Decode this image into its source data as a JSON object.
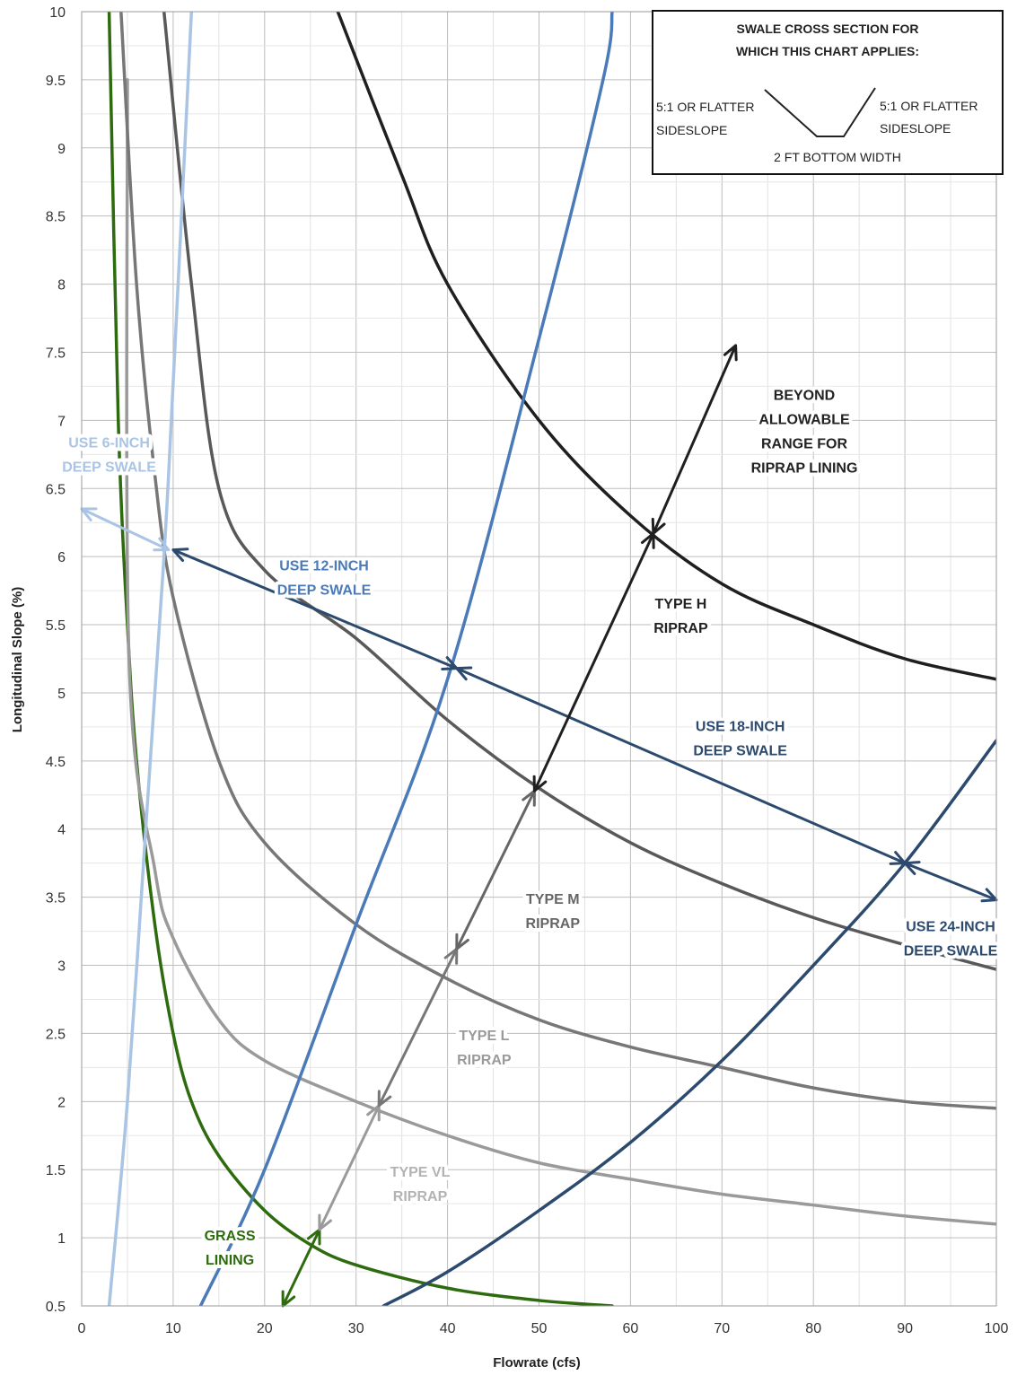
{
  "chart_data": {
    "type": "line",
    "xlabel": "Flowrate (cfs)",
    "ylabel": "Longitudinal Slope (%)",
    "xlim": [
      0,
      100
    ],
    "ylim": [
      0.5,
      10
    ],
    "x_ticks": [
      "0",
      "10",
      "20",
      "30",
      "40",
      "50",
      "60",
      "70",
      "80",
      "90",
      "100"
    ],
    "y_ticks": [
      "0.5",
      "1",
      "1.5",
      "2",
      "2.5",
      "3",
      "3.5",
      "4",
      "4.5",
      "5",
      "5.5",
      "6",
      "6.5",
      "7",
      "7.5",
      "8",
      "8.5",
      "9",
      "9.5",
      "10"
    ],
    "grid": true,
    "series": [
      {
        "color": "#2e6b0f",
        "points": [
          [
            3,
            10
          ],
          [
            4,
            7
          ],
          [
            5,
            5.5
          ],
          [
            6,
            4.5
          ],
          [
            8,
            3.3
          ],
          [
            10,
            2.5
          ],
          [
            12,
            2.0
          ],
          [
            15,
            1.6
          ],
          [
            20,
            1.2
          ],
          [
            25,
            0.95
          ],
          [
            30,
            0.8
          ],
          [
            40,
            0.63
          ],
          [
            50,
            0.54
          ],
          [
            58,
            0.5
          ]
        ]
      },
      {
        "color": "#9a9a9a",
        "points": [
          [
            5,
            9.5
          ],
          [
            5.2,
            5.2
          ],
          [
            8,
            3.7
          ],
          [
            10,
            3.2
          ],
          [
            15,
            2.6
          ],
          [
            20,
            2.3
          ],
          [
            30,
            2.0
          ],
          [
            40,
            1.75
          ],
          [
            50,
            1.55
          ],
          [
            60,
            1.43
          ],
          [
            70,
            1.32
          ],
          [
            80,
            1.24
          ],
          [
            90,
            1.16
          ],
          [
            100,
            1.1
          ]
        ]
      },
      {
        "color": "#777777",
        "points": [
          [
            4.3,
            10
          ],
          [
            6,
            8
          ],
          [
            8,
            6.6
          ],
          [
            10,
            5.7
          ],
          [
            15,
            4.5
          ],
          [
            20,
            3.9
          ],
          [
            30,
            3.3
          ],
          [
            40,
            2.9
          ],
          [
            50,
            2.6
          ],
          [
            60,
            2.4
          ],
          [
            70,
            2.25
          ],
          [
            80,
            2.1
          ],
          [
            90,
            2.0
          ],
          [
            100,
            1.95
          ]
        ]
      },
      {
        "color": "#595959",
        "points": [
          [
            9,
            10
          ],
          [
            12,
            8
          ],
          [
            15,
            6.5
          ],
          [
            20,
            5.9
          ],
          [
            30,
            5.4
          ],
          [
            40,
            4.8
          ],
          [
            50,
            4.3
          ],
          [
            60,
            3.9
          ],
          [
            70,
            3.6
          ],
          [
            80,
            3.35
          ],
          [
            90,
            3.15
          ],
          [
            100,
            2.97
          ]
        ]
      },
      {
        "color": "#1f1f1f",
        "points": [
          [
            28,
            10
          ],
          [
            35,
            8.8
          ],
          [
            40,
            8
          ],
          [
            50,
            7.0
          ],
          [
            60,
            6.3
          ],
          [
            70,
            5.8
          ],
          [
            80,
            5.5
          ],
          [
            90,
            5.25
          ],
          [
            100,
            5.1
          ]
        ]
      },
      {
        "color": "#a9c4e4",
        "points": [
          [
            3,
            0.5
          ],
          [
            5,
            2
          ],
          [
            7,
            4
          ],
          [
            8.5,
            5.5
          ],
          [
            9.5,
            6.6
          ],
          [
            12,
            10
          ]
        ]
      },
      {
        "color": "#4a7ab8",
        "points": [
          [
            13,
            0.5
          ],
          [
            20,
            1.5
          ],
          [
            30,
            3.3
          ],
          [
            40,
            5.1
          ],
          [
            50,
            7.6
          ],
          [
            57,
            9.5
          ],
          [
            58,
            10
          ]
        ]
      },
      {
        "color": "#2c4a6e",
        "points": [
          [
            33,
            0.5
          ],
          [
            40,
            0.75
          ],
          [
            50,
            1.2
          ],
          [
            60,
            1.7
          ],
          [
            70,
            2.3
          ],
          [
            80,
            3.0
          ],
          [
            90,
            3.75
          ],
          [
            100,
            4.65
          ]
        ]
      }
    ],
    "arrows": [
      {
        "color": "#a9c4e4",
        "from": [
          0,
          6.35
        ],
        "to": [
          9.5,
          6.05
        ]
      },
      {
        "color": "#2c4a6e",
        "from": [
          10,
          6.05
        ],
        "to": [
          41,
          5.18
        ]
      },
      {
        "color": "#2c4a6e",
        "from": [
          41,
          5.18
        ],
        "to": [
          90,
          3.75
        ]
      },
      {
        "color": "#2c4a6e",
        "from": [
          90,
          3.75
        ],
        "to": [
          100,
          3.48
        ]
      },
      {
        "color": "#2e6b0f",
        "from": [
          22,
          0.5
        ],
        "to": [
          26,
          1.06
        ]
      },
      {
        "color": "#9a9a9a",
        "from": [
          26,
          1.06
        ],
        "to": [
          32.5,
          1.97
        ]
      },
      {
        "color": "#777777",
        "from": [
          32.5,
          1.97
        ],
        "to": [
          41,
          3.12
        ]
      },
      {
        "color": "#666666",
        "from": [
          41,
          3.12
        ],
        "to": [
          49.5,
          4.28
        ]
      },
      {
        "color": "#1f1f1f",
        "from": [
          49.5,
          4.28
        ],
        "to": [
          62.5,
          6.17
        ]
      },
      {
        "color": "#1f1f1f",
        "from": [
          62.5,
          6.17
        ],
        "to": [
          71.5,
          7.55
        ]
      }
    ],
    "annotations": [
      {
        "text_lines": [
          "USE 6-INCH",
          "DEEP SWALE"
        ],
        "x": 3,
        "y": 6.8,
        "color": "#a9c4e4"
      },
      {
        "text_lines": [
          "USE 12-INCH",
          "DEEP SWALE"
        ],
        "x": 26.5,
        "y": 5.9,
        "color": "#4a7ab8"
      },
      {
        "text_lines": [
          "USE 18-INCH",
          "DEEP SWALE"
        ],
        "x": 72,
        "y": 4.72,
        "color": "#2c4a6e"
      },
      {
        "text_lines": [
          "USE 24-INCH",
          "DEEP SWALE"
        ],
        "x": 95,
        "y": 3.25,
        "color": "#2c4a6e"
      },
      {
        "text_lines": [
          "BEYOND",
          "ALLOWABLE",
          "RANGE FOR",
          "RIPRAP LINING"
        ],
        "x": 79,
        "y": 7.15,
        "color": "#222222"
      },
      {
        "text_lines": [
          "TYPE H",
          "RIPRAP"
        ],
        "x": 65.5,
        "y": 5.62,
        "color": "#222222"
      },
      {
        "text_lines": [
          "TYPE M",
          "RIPRAP"
        ],
        "x": 51.5,
        "y": 3.45,
        "color": "#666666"
      },
      {
        "text_lines": [
          "TYPE L",
          "RIPRAP"
        ],
        "x": 44,
        "y": 2.45,
        "color": "#9a9a9a"
      },
      {
        "text_lines": [
          "TYPE VL",
          "RIPRAP"
        ],
        "x": 37,
        "y": 1.45,
        "color": "#b3b3b3"
      },
      {
        "text_lines": [
          "GRASS",
          "LINING"
        ],
        "x": 16.2,
        "y": 0.98,
        "color": "#2e6b0f"
      }
    ],
    "inset": {
      "title_lines": [
        "SWALE CROSS SECTION FOR",
        "WHICH THIS CHART APPLIES:"
      ],
      "left_label": [
        "5:1 OR FLATTER",
        "SIDESLOPE"
      ],
      "right_label": [
        "5:1 OR FLATTER",
        "SIDESLOPE"
      ],
      "bottom_label": "2 FT BOTTOM WIDTH",
      "placement": "top-right"
    }
  }
}
